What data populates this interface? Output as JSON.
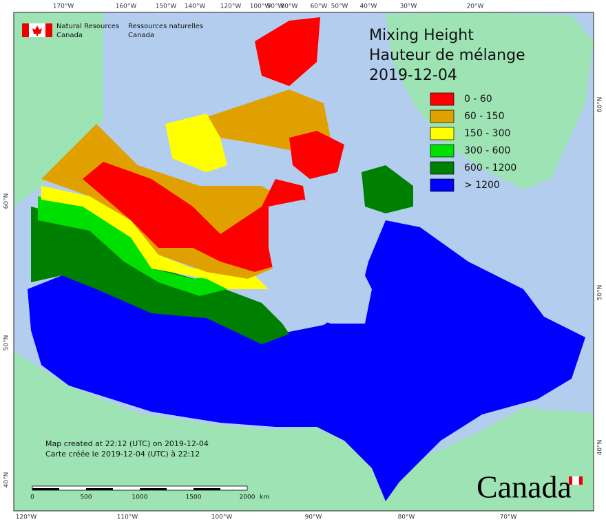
{
  "header": {
    "department_en": [
      "Natural Resources",
      "Canada"
    ],
    "department_fr": [
      "Ressources naturelles",
      "Canada"
    ]
  },
  "map": {
    "title_lines": [
      "Mixing Height",
      "Hauteur de mélange",
      "2019-12-04"
    ],
    "legend": [
      {
        "label": "0 - 60",
        "color": "#ff0000"
      },
      {
        "label": "60 - 150",
        "color": "#e0a000"
      },
      {
        "label": "150 - 300",
        "color": "#ffff00"
      },
      {
        "label": "300 - 600",
        "color": "#00e000"
      },
      {
        "label": "600 - 1200",
        "color": "#008000"
      },
      {
        "label": "> 1200",
        "color": "#0000ff"
      }
    ],
    "graticule": {
      "top": [
        "170°W",
        "160°W",
        "150°W",
        "140°W",
        "120°W",
        "100°W",
        "90°W",
        "80°W",
        "60°W",
        "50°W",
        "40°W",
        "30°W",
        "20°W"
      ],
      "bottom": [
        "120°W",
        "110°W",
        "100°W",
        "90°W",
        "80°W",
        "70°W"
      ],
      "left": [
        "60°N",
        "50°N",
        "40°N"
      ],
      "right": [
        "60°N",
        "50°N",
        "40°N"
      ]
    },
    "credits": [
      "Map created at 22:12 (UTC) on 2019-12-04",
      "Carte créée le 2019-12-04 (UTC) à 22:12"
    ],
    "scale_bar": {
      "labels": [
        "0",
        "500",
        "1000",
        "1500",
        "2000"
      ],
      "unit": "km"
    },
    "wordmark": "Canada"
  }
}
